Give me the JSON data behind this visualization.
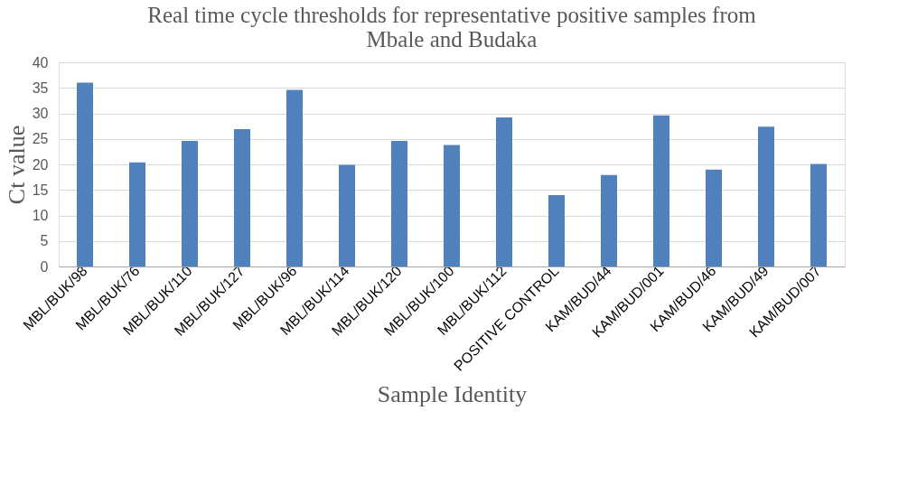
{
  "chart_data": {
    "type": "bar",
    "title": "Real time cycle thresholds for representative positive samples from Mbale and Budaka",
    "xlabel": "Sample Identity",
    "ylabel": "Ct value",
    "categories": [
      "MBL/BUK/98",
      "MBL/BUK/76",
      "MBL/BUK/110",
      "MBL/BUK/127",
      "MBL/BUK/96",
      "MBL/BUK/114",
      "MBL/BUK/120",
      "MBL/BUK/100",
      "MBL/BUK/112",
      "POSITIVE CONTROL",
      "KAM/BUD/44",
      "KAM/BUD/001",
      "KAM/BUD/46",
      "KAM/BUD/49",
      "KAM/BUD/007"
    ],
    "values": [
      36.0,
      20.4,
      24.6,
      26.9,
      34.6,
      19.9,
      24.6,
      23.8,
      29.2,
      14.0,
      17.9,
      29.6,
      19.0,
      27.4,
      20.1
    ],
    "color": "#4f81bd",
    "ylim": [
      0,
      40
    ],
    "yticks": [
      0,
      5,
      10,
      15,
      20,
      25,
      30,
      35,
      40
    ],
    "grid": "y"
  }
}
